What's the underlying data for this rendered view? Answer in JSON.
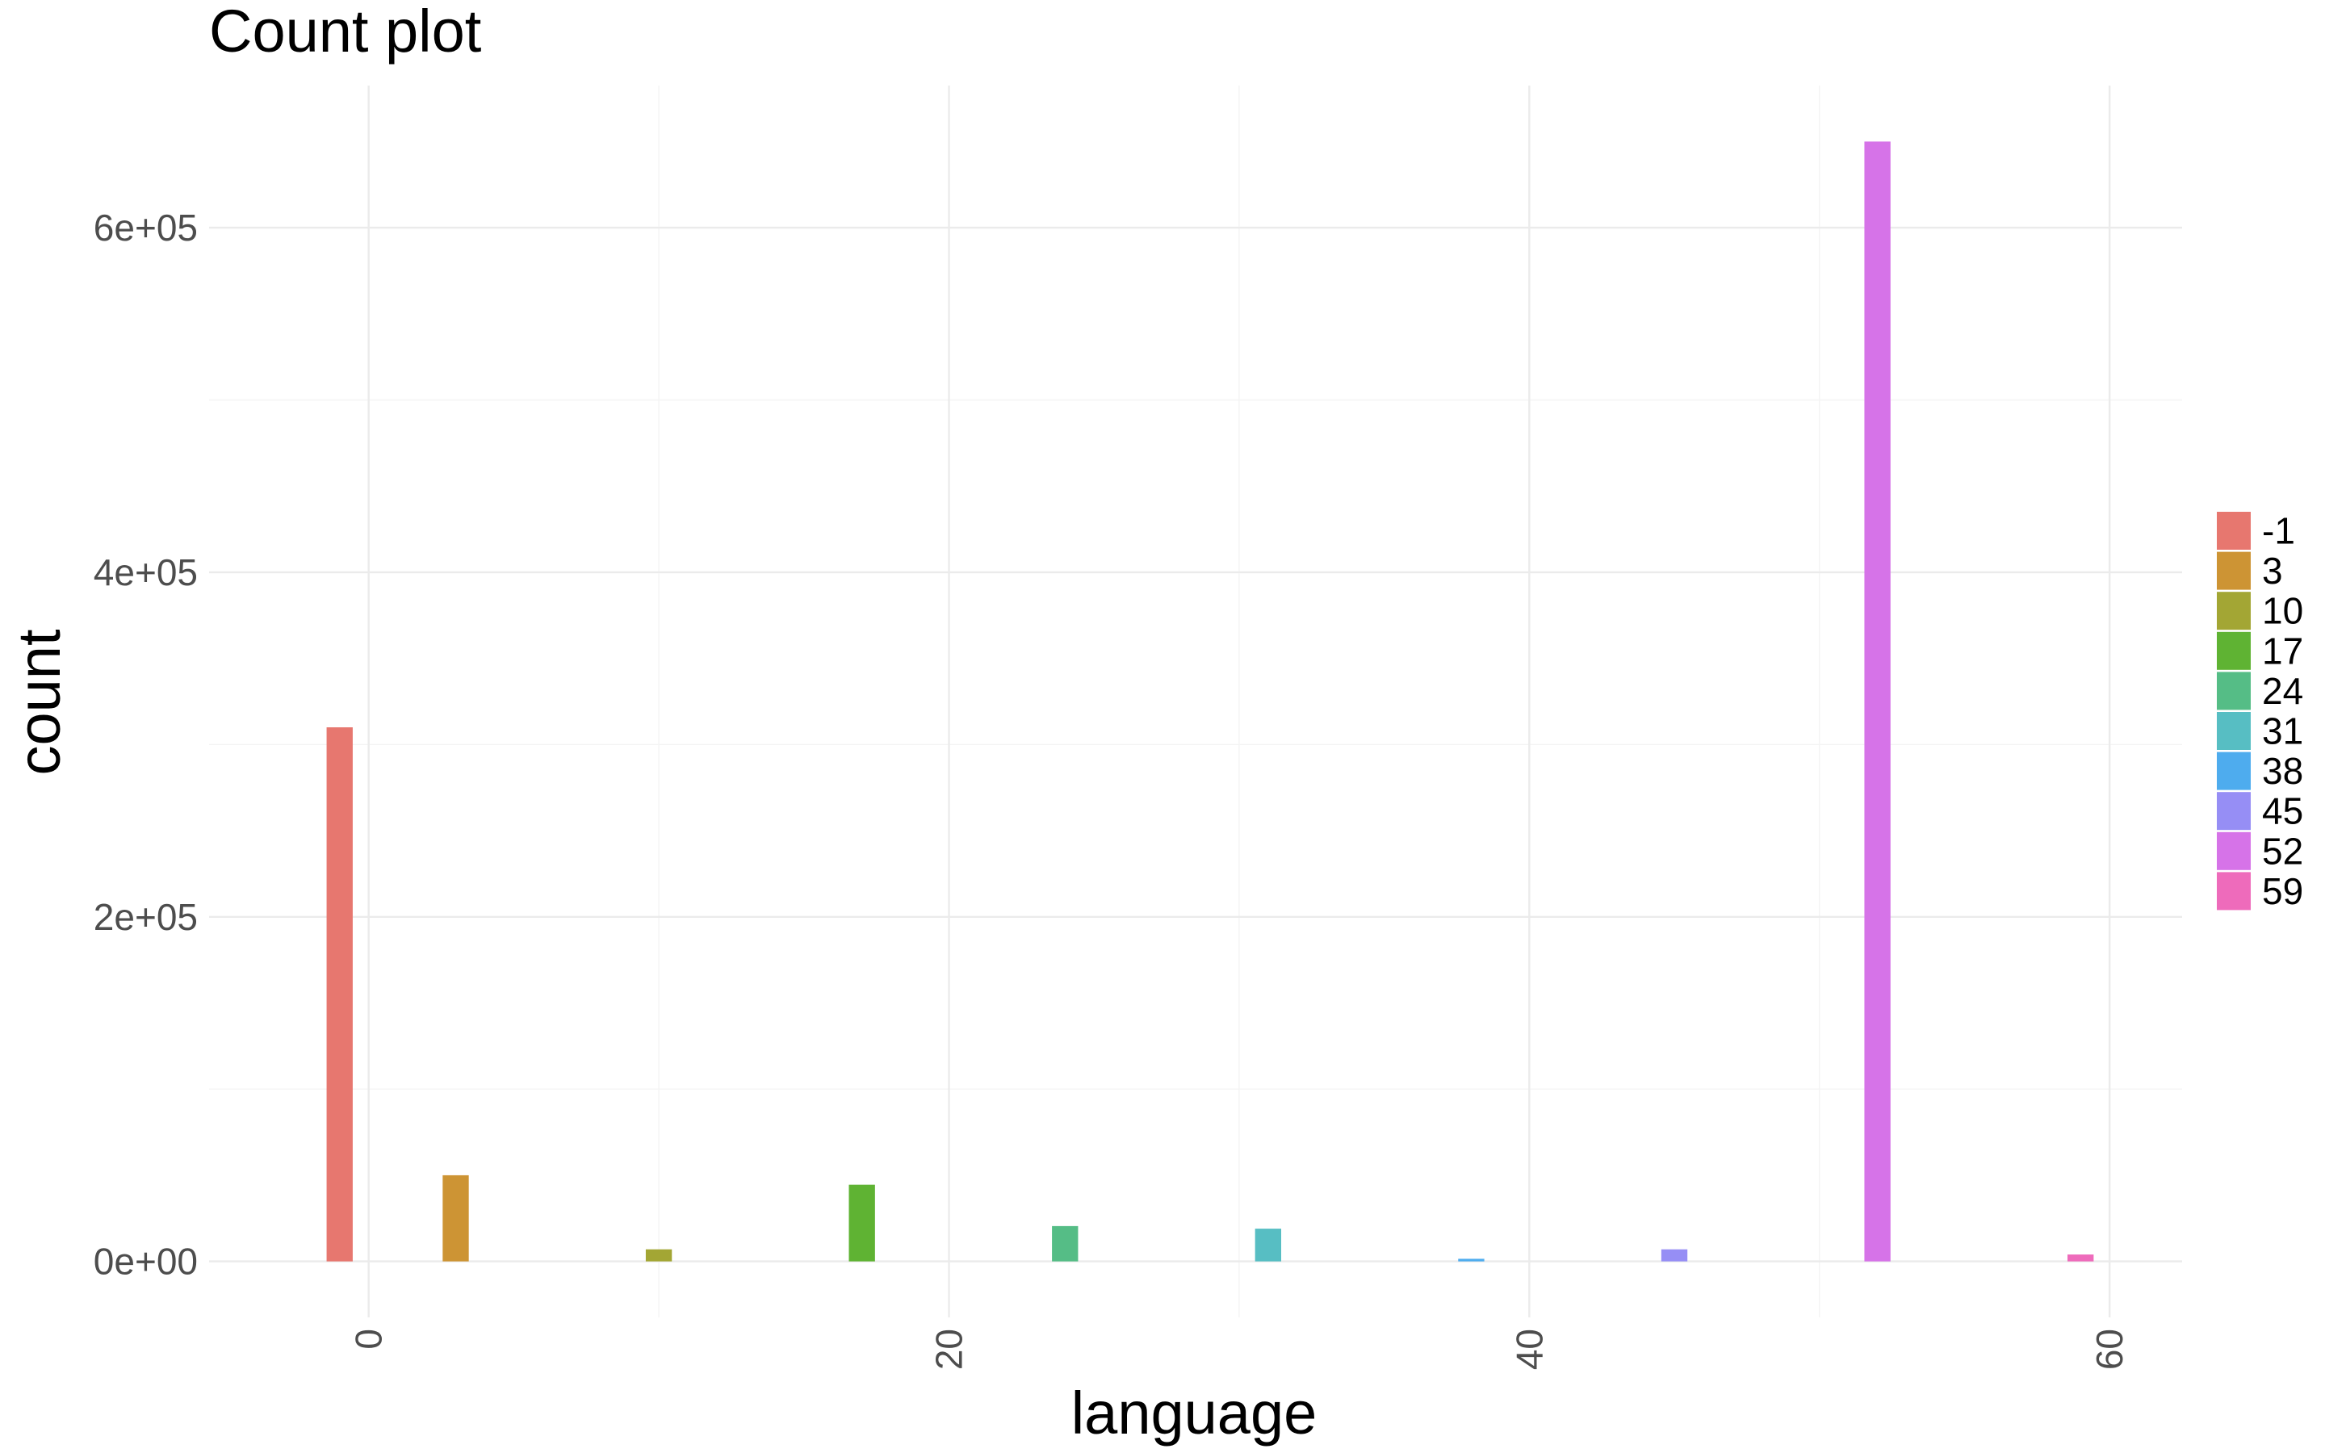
{
  "chart_data": {
    "type": "bar",
    "title": "Count plot",
    "xlabel": "language",
    "ylabel": "count",
    "x": [
      -1,
      3,
      10,
      17,
      24,
      31,
      38,
      45,
      52,
      59
    ],
    "values": [
      310000,
      50000,
      7000,
      44500,
      20500,
      19000,
      1500,
      7000,
      650000,
      4000
    ],
    "legend": {
      "placement": "right",
      "entries": [
        "-1",
        "3",
        "10",
        "17",
        "24",
        "31",
        "38",
        "45",
        52,
        "59"
      ]
    },
    "colors": [
      "#E7776F",
      "#CD9434",
      "#A3A634",
      "#5FB333",
      "#55BD86",
      "#57BEC3",
      "#4EACEE",
      "#968EF5",
      "#D673E8",
      "#EE6BBB"
    ],
    "xlim": [
      -5.5,
      62.5
    ],
    "ylim": [
      -32500,
      682500
    ],
    "x_ticks": [
      0,
      20,
      40,
      60
    ],
    "x_tick_labels": [
      "0",
      "20",
      "40",
      "60"
    ],
    "y_ticks": [
      0,
      200000,
      400000,
      600000
    ],
    "y_tick_labels": [
      "0e+00",
      "2e+05",
      "4e+05",
      "6e+05"
    ],
    "grid": true,
    "x_tick_rotation": "vertical"
  }
}
